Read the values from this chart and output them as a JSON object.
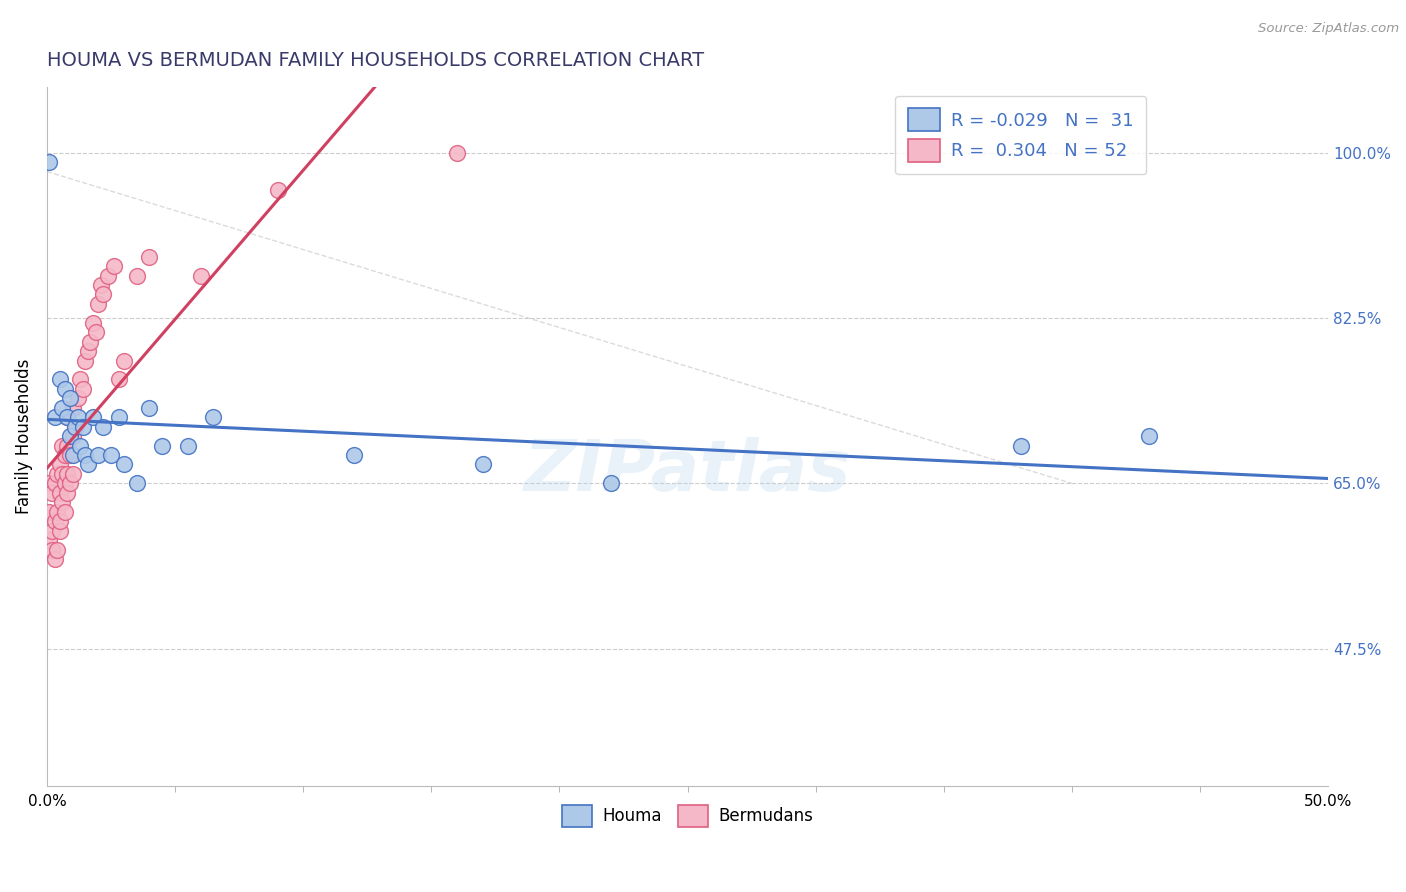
{
  "title": "HOUMA VS BERMUDAN FAMILY HOUSEHOLDS CORRELATION CHART",
  "source": "Source: ZipAtlas.com",
  "ylabel": "Family Households",
  "right_yticks": [
    "100.0%",
    "82.5%",
    "65.0%",
    "47.5%"
  ],
  "right_ytick_vals": [
    1.0,
    0.825,
    0.65,
    0.475
  ],
  "watermark": "ZIPatlas",
  "houma_color": "#aec9e8",
  "bermuda_color": "#f5b8c8",
  "houma_edge_color": "#4472c4",
  "bermuda_edge_color": "#e06080",
  "houma_line_color": "#4472c4",
  "bermuda_line_color": "#d04060",
  "legend_label_color": "#4472c4",
  "houma_R": "-0.029",
  "houma_N": "31",
  "bermuda_R": "0.304",
  "bermuda_N": "52",
  "xlim": [
    0.0,
    0.5
  ],
  "ylim": [
    0.33,
    1.07
  ],
  "houma_x": [
    0.001,
    0.003,
    0.005,
    0.006,
    0.007,
    0.008,
    0.009,
    0.009,
    0.01,
    0.011,
    0.012,
    0.013,
    0.014,
    0.015,
    0.016,
    0.018,
    0.02,
    0.022,
    0.025,
    0.028,
    0.03,
    0.035,
    0.04,
    0.045,
    0.055,
    0.065,
    0.12,
    0.17,
    0.22,
    0.38,
    0.43
  ],
  "houma_y": [
    0.99,
    0.72,
    0.76,
    0.73,
    0.75,
    0.72,
    0.7,
    0.74,
    0.68,
    0.71,
    0.72,
    0.69,
    0.71,
    0.68,
    0.67,
    0.72,
    0.68,
    0.71,
    0.68,
    0.72,
    0.67,
    0.65,
    0.73,
    0.69,
    0.69,
    0.72,
    0.68,
    0.67,
    0.65,
    0.69,
    0.7
  ],
  "bermuda_x": [
    0.001,
    0.001,
    0.001,
    0.002,
    0.002,
    0.002,
    0.003,
    0.003,
    0.003,
    0.004,
    0.004,
    0.004,
    0.005,
    0.005,
    0.005,
    0.005,
    0.006,
    0.006,
    0.006,
    0.007,
    0.007,
    0.007,
    0.008,
    0.008,
    0.008,
    0.008,
    0.009,
    0.009,
    0.01,
    0.01,
    0.01,
    0.011,
    0.012,
    0.013,
    0.014,
    0.015,
    0.016,
    0.017,
    0.018,
    0.019,
    0.02,
    0.021,
    0.022,
    0.024,
    0.026,
    0.028,
    0.03,
    0.035,
    0.04,
    0.06,
    0.09,
    0.16
  ],
  "bermuda_y": [
    0.59,
    0.62,
    0.65,
    0.58,
    0.6,
    0.64,
    0.57,
    0.61,
    0.65,
    0.58,
    0.62,
    0.66,
    0.6,
    0.64,
    0.67,
    0.61,
    0.63,
    0.66,
    0.69,
    0.62,
    0.65,
    0.68,
    0.64,
    0.66,
    0.69,
    0.72,
    0.65,
    0.68,
    0.66,
    0.7,
    0.73,
    0.71,
    0.74,
    0.76,
    0.75,
    0.78,
    0.79,
    0.8,
    0.82,
    0.81,
    0.84,
    0.86,
    0.85,
    0.87,
    0.88,
    0.76,
    0.78,
    0.87,
    0.89,
    0.87,
    0.96,
    1.0
  ]
}
